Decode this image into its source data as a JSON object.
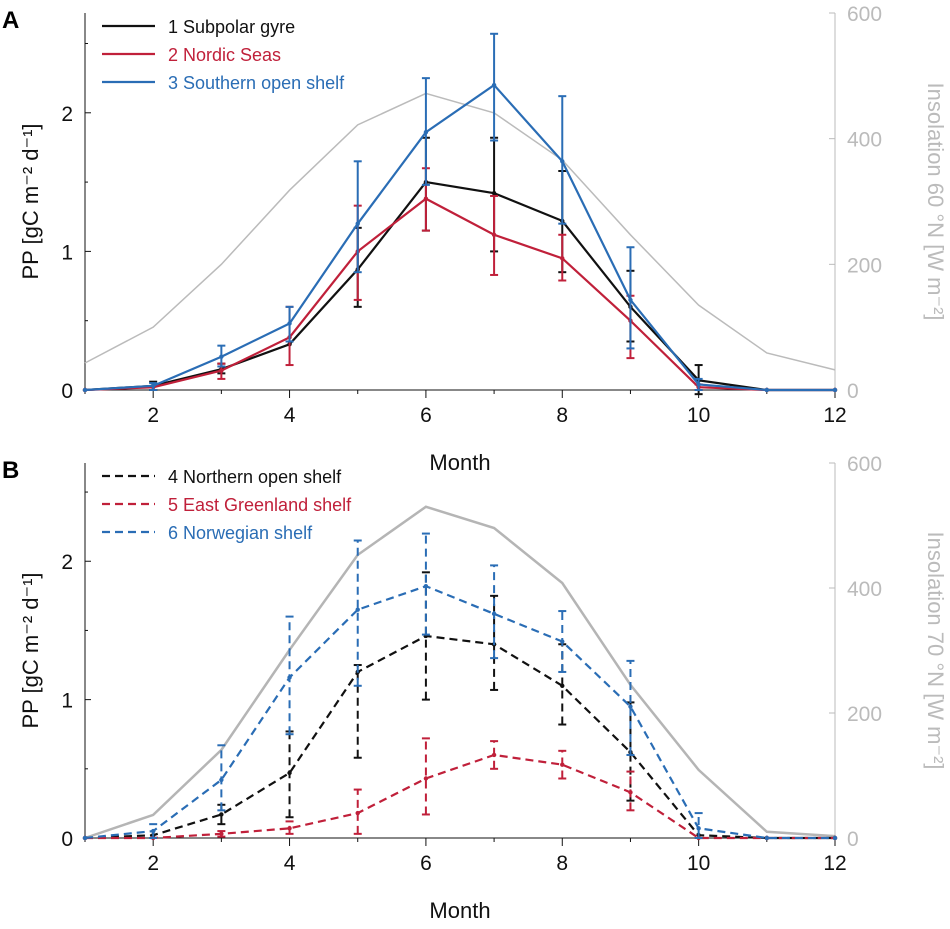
{
  "chart_data": [
    {
      "panel_label": "A",
      "type": "line",
      "xlabel": "Month",
      "ylabel": "PP [gC m⁻² d⁻¹]",
      "ylabel_right": "Insolation 60 °N [W m⁻²]",
      "xlim": [
        1,
        12
      ],
      "ylim": [
        0,
        2.72
      ],
      "ylim_right": [
        0,
        600
      ],
      "xticks": [
        "2",
        "4",
        "6",
        "8",
        "10",
        "12"
      ],
      "yticks": [
        "0",
        "1",
        "2"
      ],
      "yticks_right": [
        "0",
        "200",
        "400",
        "600"
      ],
      "legend_position": "top-left",
      "x": [
        1,
        2,
        3,
        4,
        5,
        6,
        7,
        8,
        9,
        10,
        11,
        12
      ],
      "series": [
        {
          "name": "1 Subpolar gyre",
          "color": "#111111",
          "dash": false,
          "values": [
            0,
            0.03,
            0.15,
            0.33,
            0.87,
            1.5,
            1.42,
            1.22,
            0.6,
            0.07,
            0,
            0
          ],
          "err_low": [
            null,
            0.0,
            0.12,
            null,
            0.6,
            1.15,
            1.0,
            0.85,
            0.35,
            -0.03,
            null,
            null
          ],
          "err_high": [
            null,
            0.06,
            0.19,
            0.6,
            1.17,
            1.82,
            1.82,
            1.58,
            0.86,
            0.18,
            null,
            null
          ]
        },
        {
          "name": "2 Nordic Seas",
          "color": "#c0203a",
          "dash": false,
          "values": [
            0,
            0.02,
            0.14,
            0.38,
            1.0,
            1.38,
            1.12,
            0.95,
            0.5,
            0.02,
            0,
            0
          ],
          "err_low": [
            null,
            null,
            0.08,
            0.18,
            0.65,
            1.15,
            0.83,
            0.79,
            0.23,
            0.0,
            null,
            null
          ],
          "err_high": [
            null,
            null,
            0.19,
            0.6,
            1.33,
            1.6,
            1.4,
            1.12,
            0.68,
            0.04,
            null,
            null
          ]
        },
        {
          "name": "3 Southern open shelf",
          "color": "#2a6db5",
          "dash": false,
          "values": [
            0,
            0.03,
            0.24,
            0.48,
            1.2,
            1.86,
            2.2,
            1.65,
            0.65,
            0.04,
            0,
            0
          ],
          "err_low": [
            null,
            0.0,
            0.17,
            0.35,
            0.85,
            1.48,
            1.8,
            1.2,
            0.3,
            0.0,
            null,
            null
          ],
          "err_high": [
            null,
            0.05,
            0.32,
            0.6,
            1.65,
            2.25,
            2.57,
            2.12,
            1.03,
            0.08,
            null,
            null
          ]
        }
      ],
      "insolation": {
        "color": "#bbbbbb",
        "values": [
          43,
          100,
          200,
          318,
          422,
          472,
          441,
          366,
          247,
          135,
          59,
          32
        ]
      }
    },
    {
      "panel_label": "B",
      "type": "line",
      "xlabel": "Month",
      "ylabel": "PP [gC m⁻² d⁻¹]",
      "ylabel_right": "Insolation 70 °N [W m⁻²]",
      "xlim": [
        1,
        12
      ],
      "ylim": [
        0,
        2.71
      ],
      "ylim_right": [
        0,
        600
      ],
      "xticks": [
        "2",
        "4",
        "6",
        "8",
        "10",
        "12"
      ],
      "yticks": [
        "0",
        "1",
        "2"
      ],
      "yticks_right": [
        "0",
        "200",
        "400",
        "600"
      ],
      "legend_position": "top-left",
      "x": [
        1,
        2,
        3,
        4,
        5,
        6,
        7,
        8,
        9,
        10,
        11,
        12
      ],
      "series": [
        {
          "name": "4 Northern open shelf",
          "color": "#111111",
          "dash": true,
          "values": [
            0,
            0.02,
            0.17,
            0.47,
            1.2,
            1.46,
            1.4,
            1.1,
            0.62,
            0.02,
            0,
            0
          ],
          "err_low": [
            null,
            null,
            0.1,
            0.15,
            0.58,
            1.0,
            1.07,
            0.82,
            0.27,
            null,
            null,
            null
          ],
          "err_high": [
            null,
            null,
            0.24,
            0.77,
            1.25,
            1.92,
            1.75,
            1.4,
            0.98,
            null,
            null,
            null
          ]
        },
        {
          "name": "5 East Greenland shelf",
          "color": "#c0203a",
          "dash": true,
          "values": [
            0,
            0,
            0.03,
            0.07,
            0.18,
            0.43,
            0.6,
            0.53,
            0.33,
            0,
            0,
            0
          ],
          "err_low": [
            null,
            null,
            0.01,
            0.03,
            0.03,
            0.17,
            0.5,
            0.43,
            0.2,
            null,
            null,
            null
          ],
          "err_high": [
            null,
            null,
            0.05,
            0.12,
            0.35,
            0.72,
            0.7,
            0.63,
            0.48,
            null,
            null,
            null
          ]
        },
        {
          "name": "6 Norwegian shelf",
          "color": "#2a6db5",
          "dash": true,
          "values": [
            0,
            0.05,
            0.42,
            1.16,
            1.65,
            1.82,
            1.62,
            1.42,
            0.95,
            0.07,
            0,
            0
          ],
          "err_low": [
            null,
            0.0,
            0.2,
            0.75,
            1.1,
            1.47,
            1.3,
            1.2,
            0.6,
            0.0,
            null,
            null
          ],
          "err_high": [
            null,
            0.1,
            0.67,
            1.6,
            2.15,
            2.2,
            1.97,
            1.64,
            1.28,
            0.18,
            null,
            null
          ]
        }
      ],
      "insolation": {
        "color": "#b5b5b5",
        "values": [
          0,
          37,
          141,
          301,
          453,
          530,
          496,
          408,
          245,
          109,
          10,
          3
        ]
      }
    }
  ]
}
